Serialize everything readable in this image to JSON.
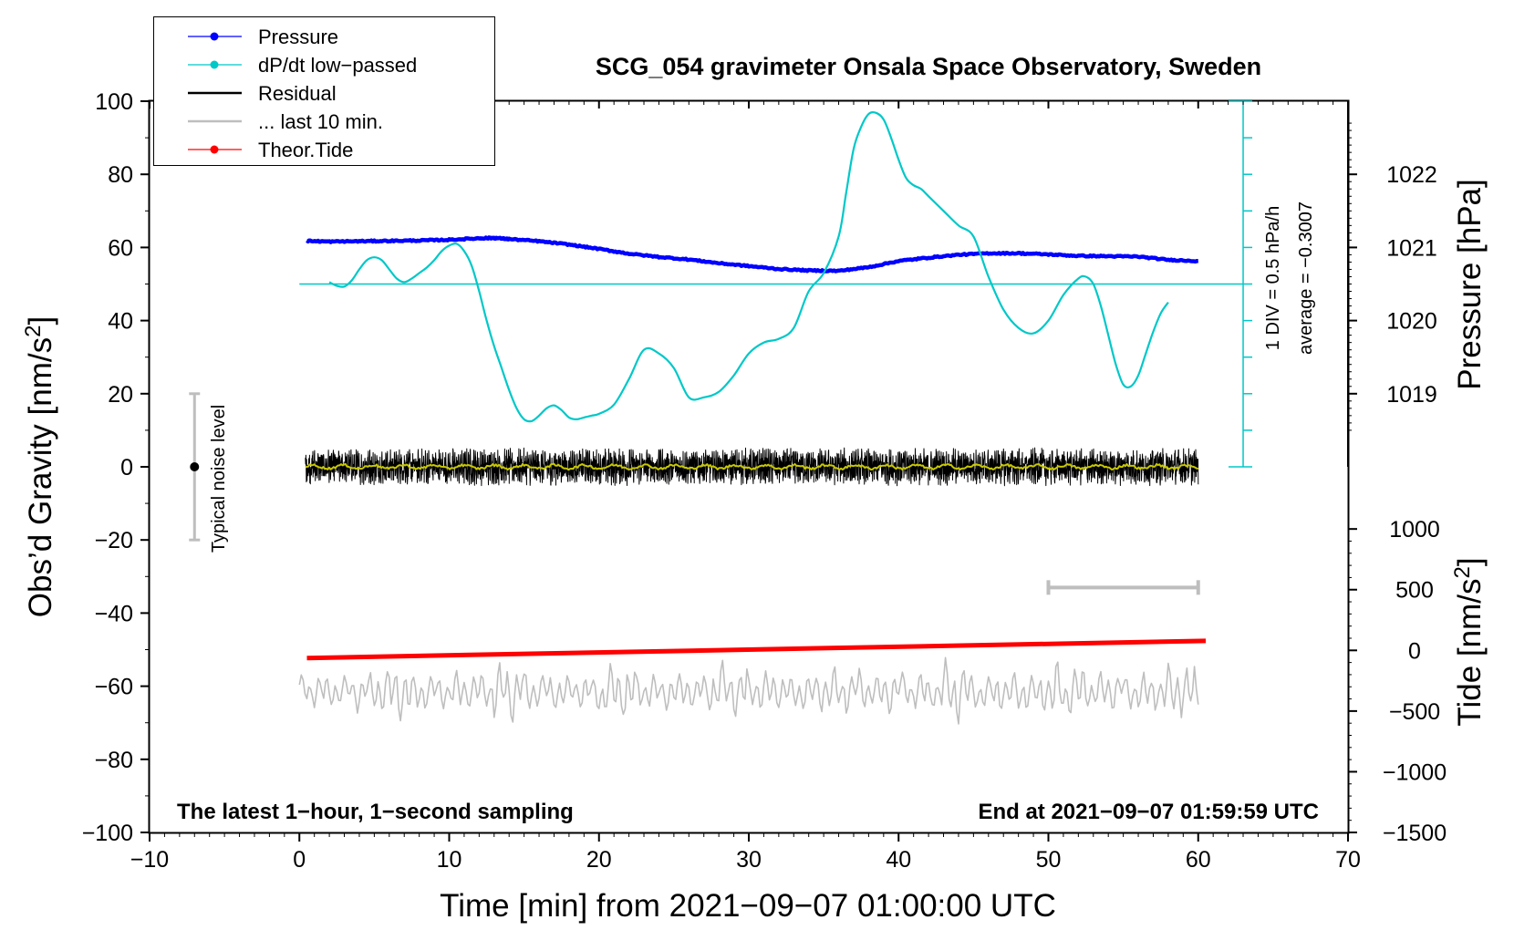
{
  "chart_data": {
    "type": "line",
    "title": "SCG_054 gravimeter Onsala Space Observatory, Sweden",
    "xlabel": "Time [min] from 2021−09−07 01:00:00 UTC",
    "ylabel_left": "Obs’d Gravity [nm/s",
    "ylabel_left_sup": "2",
    "ylabel_left_end": "]",
    "ylabel_pressure": "Pressure [hPa]",
    "ylabel_tide": "Tide [nm/s",
    "ylabel_tide_sup": "2",
    "ylabel_tide_end": "]",
    "xlim": [
      -10,
      70
    ],
    "ylim": [
      -100,
      100
    ],
    "x_ticks": [
      -10,
      0,
      10,
      20,
      30,
      40,
      50,
      60,
      70
    ],
    "x_tick_labels": [
      "−10",
      "0",
      "10",
      "20",
      "30",
      "40",
      "50",
      "60",
      "70"
    ],
    "y_ticks": [
      -100,
      -80,
      -60,
      -40,
      -20,
      0,
      20,
      40,
      60,
      80,
      100
    ],
    "y_tick_labels": [
      "−100",
      "−80",
      "−60",
      "−40",
      "−20",
      "0",
      "20",
      "40",
      "60",
      "80",
      "100"
    ],
    "pressure_axis": {
      "ticks": [
        1019,
        1020,
        1021,
        1022
      ],
      "tick_labels": [
        "1019",
        "1020",
        "1021",
        "1022"
      ],
      "mapping": {
        "hPa": [
          1019,
          1022
        ],
        "gravity": [
          20,
          80
        ]
      }
    },
    "tide_axis": {
      "ticks": [
        -1500,
        -1000,
        -500,
        0,
        500,
        1000
      ],
      "tick_labels": [
        "−1500",
        "−1000",
        "−500",
        "0",
        "500",
        "1000"
      ],
      "mapping": {
        "tide": [
          -1500,
          1000
        ],
        "gravity": [
          -100,
          -17
        ]
      }
    },
    "dpdt_scale": {
      "label": "1 DIV = 0.5 hPa/h",
      "average_label": "average = −0.3007",
      "x": 63,
      "y_range": [
        0,
        100
      ],
      "baseline": 50,
      "divisions": 10
    },
    "legend": {
      "position": "top-left",
      "entries": [
        {
          "label": "Pressure",
          "color": "#0000ff",
          "marker": true
        },
        {
          "label": "dP/dt low−passed",
          "color": "#00c8c8",
          "marker": true
        },
        {
          "label": "Residual",
          "color": "#000000",
          "marker": false
        },
        {
          "label": "... last 10 min.",
          "color": "#bebebe",
          "marker": false
        },
        {
          "label": "Theor.Tide",
          "color": "#ff0000",
          "marker": true
        }
      ]
    },
    "annotations": {
      "bottom_left": "The latest 1−hour, 1−second sampling",
      "bottom_right": "End at 2021−09−07 01:59:59 UTC",
      "noise_label": "Typical noise level",
      "noise_bar": {
        "x": -7,
        "center": 0,
        "range": [
          -20,
          20
        ]
      },
      "last10_bar": {
        "x": [
          50,
          60
        ],
        "y": -33
      }
    },
    "series": [
      {
        "name": "Pressure",
        "color": "#0000ff",
        "x": [
          0.5,
          2,
          4,
          6,
          8,
          10,
          12,
          13,
          14,
          16,
          18,
          20,
          22,
          24,
          26,
          28,
          30,
          32,
          34,
          36,
          38,
          40,
          42,
          44,
          46,
          48,
          50,
          52,
          54,
          56,
          58,
          60
        ],
        "y": [
          61.8,
          61.6,
          61.7,
          61.8,
          61.9,
          62.1,
          62.5,
          62.6,
          62.3,
          61.7,
          60.8,
          59.6,
          58.3,
          57.4,
          56.7,
          55.7,
          54.9,
          54.1,
          53.7,
          53.6,
          54.6,
          56.3,
          57.2,
          58.0,
          58.4,
          58.4,
          58.1,
          57.7,
          57.6,
          57.5,
          56.6,
          56.3
        ]
      },
      {
        "name": "dP/dt low-passed",
        "color": "#00c8c8",
        "x": [
          2,
          2.5,
          3,
          3.5,
          4,
          4.5,
          5,
          5.5,
          6,
          6.5,
          7,
          7.5,
          8,
          8.5,
          9,
          9.5,
          10,
          10.5,
          11,
          11.5,
          12,
          12.5,
          13,
          13.5,
          14,
          14.5,
          15,
          15.5,
          16,
          16.5,
          17,
          17.5,
          18,
          18.5,
          19,
          19.5,
          20,
          21,
          22,
          23,
          24,
          25,
          26,
          27,
          28,
          29,
          30,
          31,
          32,
          33,
          34,
          35,
          36,
          36.5,
          37,
          37.5,
          38,
          38.5,
          39,
          39.5,
          40,
          40.5,
          41,
          41.5,
          42,
          43,
          44,
          45,
          46,
          47,
          48,
          49,
          50,
          51,
          52,
          52.5,
          53,
          53.5,
          54,
          54.5,
          55,
          55.5,
          56,
          56.5,
          57,
          57.5,
          58
        ],
        "y": [
          50.5,
          49.5,
          49.3,
          51,
          54,
          56.5,
          57.3,
          56.5,
          54,
          51.5,
          50.5,
          51.5,
          53,
          54.5,
          56.5,
          59,
          60.5,
          61,
          59,
          55,
          48,
          40,
          33,
          27,
          21,
          16,
          13,
          12.5,
          14,
          16,
          16.8,
          15.5,
          13.5,
          13,
          13.5,
          14,
          14.5,
          17,
          24,
          32,
          31,
          27,
          19,
          19,
          20.5,
          25,
          31,
          34,
          35,
          38,
          48,
          53,
          63,
          75,
          87,
          93,
          96.5,
          96.8,
          95,
          90,
          84,
          79,
          77,
          76,
          74,
          70,
          66,
          63,
          52,
          43,
          38,
          36.5,
          40,
          47,
          51.5,
          52,
          50,
          44,
          36,
          28,
          22.5,
          22,
          25,
          31,
          37,
          42,
          45
        ]
      },
      {
        "name": "Residual",
        "color": "#000000",
        "x_range": [
          0.4,
          60
        ],
        "center": 0,
        "amplitude": 5.5
      },
      {
        "name": "Residual smoothed",
        "color": "#c8c800",
        "x_range": [
          0.4,
          60
        ],
        "center": 0,
        "amplitude": 0.8
      },
      {
        "name": "Theor.Tide",
        "color": "#ff0000",
        "x": [
          0.5,
          60.5
        ],
        "y": [
          -52.3,
          -47.6
        ]
      },
      {
        "name": "... last 10 min.",
        "color": "#bebebe",
        "x_range": [
          0,
          60
        ],
        "center": -61.5,
        "amplitude": 6
      }
    ]
  }
}
